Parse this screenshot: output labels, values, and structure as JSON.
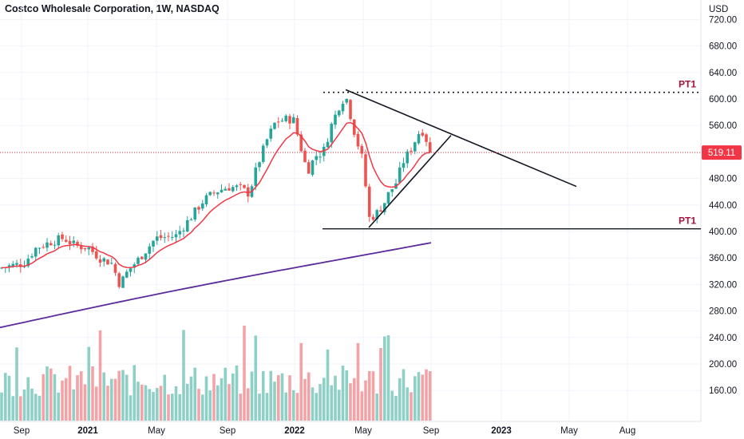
{
  "header": {
    "title": "Costco Wholesale Corporation, 1W, NASDAQ"
  },
  "y_axis": {
    "unit": "USD",
    "ticks": [
      "720.00",
      "680.00",
      "640.00",
      "600.00",
      "560.00",
      "520.00",
      "480.00",
      "440.00",
      "400.00",
      "360.00",
      "320.00",
      "280.00",
      "240.00",
      "200.00",
      "160.00"
    ]
  },
  "x_axis": {
    "ticks": [
      "Sep",
      "2021",
      "May",
      "Sep",
      "2022",
      "May",
      "Sep",
      "2023",
      "May",
      "Aug"
    ]
  },
  "price_label": {
    "value": "519.11",
    "color": "#f23645"
  },
  "levels": [
    {
      "label": "PT1",
      "value": 610,
      "style": "dotted",
      "color": "#a3123a"
    },
    {
      "label": "PT1",
      "value": 404,
      "style": "solid",
      "color": "#a3123a"
    }
  ],
  "colors": {
    "up": "#26a69a",
    "down": "#ef5350",
    "vol_up": "#8ecfc6",
    "vol_down": "#f3a3a6",
    "ema": "#f23645",
    "sma": "#5b2b9c",
    "grid": "#f0f3fa",
    "axis_text": "#131722"
  },
  "chart_data": {
    "type": "candlestick",
    "title": "Costco Wholesale Corporation, 1W, NASDAQ",
    "ylabel": "USD",
    "ylim": [
      120,
      730
    ],
    "interval": "1W",
    "x": [
      "2020-08-24",
      "2021-09-01"
    ],
    "series": [
      {
        "name": "",
        "kind": "ohlc",
        "values": "generated weekly candles from Aug 2020 to Aug 2022"
      }
    ],
    "trendlines": [
      {
        "label": "",
        "from": [
          "2022-04-18",
          612
        ],
        "to": [
          "2023-05-01",
          468
        ]
      },
      {
        "label": "",
        "from": [
          "2022-05-09",
          406
        ],
        "to": [
          "2022-09-12",
          545
        ]
      }
    ],
    "last_price": 519.11
  }
}
